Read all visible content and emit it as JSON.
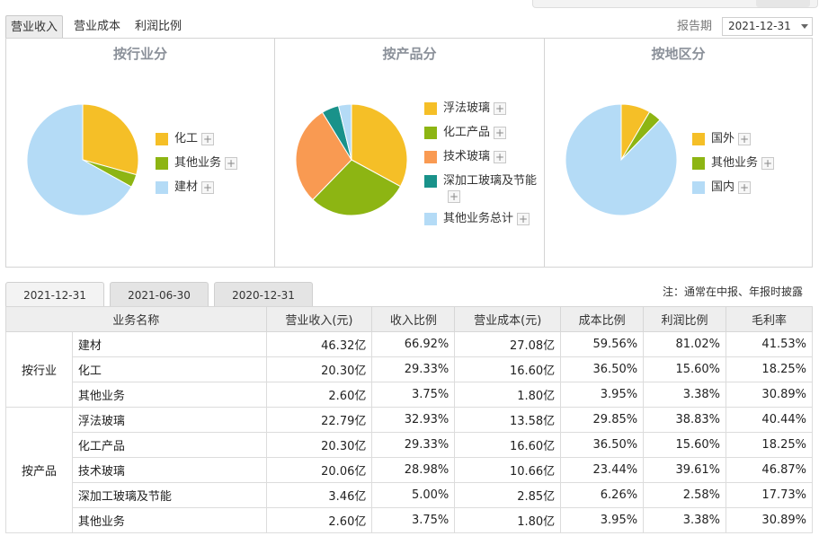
{
  "top_tabs": [
    {
      "label": "营业收入",
      "active": true
    },
    {
      "label": "营业成本",
      "active": false
    },
    {
      "label": "利润比例",
      "active": false
    }
  ],
  "report": {
    "label": "报告期",
    "selected": "2021-12-31"
  },
  "colors": {
    "yellow": "#f5bf27",
    "green": "#8db513",
    "light_blue": "#b4dbf6",
    "orange": "#f99a52",
    "teal": "#19928a",
    "title_gray": "#8a9099"
  },
  "panels": [
    {
      "title": "按行业分",
      "slices": [
        {
          "name": "化工",
          "percent": 29.33,
          "color": "#f5bf27"
        },
        {
          "name": "其他业务",
          "percent": 3.75,
          "color": "#8db513"
        },
        {
          "name": "建材",
          "percent": 66.92,
          "color": "#b4dbf6"
        }
      ]
    },
    {
      "title": "按产品分",
      "slices": [
        {
          "name": "浮法玻璃",
          "percent": 32.93,
          "color": "#f5bf27"
        },
        {
          "name": "化工产品",
          "percent": 29.33,
          "color": "#8db513"
        },
        {
          "name": "技术玻璃",
          "percent": 28.98,
          "color": "#f99a52"
        },
        {
          "name": "深加工玻璃及节能",
          "percent": 5.0,
          "color": "#19928a"
        },
        {
          "name": "其他业务总计",
          "percent": 3.75,
          "color": "#b4dbf6"
        }
      ]
    },
    {
      "title": "按地区分",
      "slices": [
        {
          "name": "国外",
          "percent": 8.5,
          "color": "#f5bf27"
        },
        {
          "name": "其他业务",
          "percent": 3.75,
          "color": "#8db513"
        },
        {
          "name": "国内",
          "percent": 87.75,
          "color": "#b4dbf6"
        }
      ]
    }
  ],
  "plus_glyph": "+",
  "period_tabs": [
    {
      "label": "2021-12-31",
      "active": true
    },
    {
      "label": "2021-06-30",
      "active": false
    },
    {
      "label": "2020-12-31",
      "active": false
    }
  ],
  "note": "注：通常在中报、年报时披露",
  "table": {
    "headers": [
      "业务名称",
      "营业收入(元)",
      "收入比例",
      "营业成本(元)",
      "成本比例",
      "利润比例",
      "毛利率"
    ],
    "groups": [
      {
        "name": "按行业",
        "rows": [
          [
            "建材",
            "46.32亿",
            "66.92%",
            "27.08亿",
            "59.56%",
            "81.02%",
            "41.53%"
          ],
          [
            "化工",
            "20.30亿",
            "29.33%",
            "16.60亿",
            "36.50%",
            "15.60%",
            "18.25%"
          ],
          [
            "其他业务",
            "2.60亿",
            "3.75%",
            "1.80亿",
            "3.95%",
            "3.38%",
            "30.89%"
          ]
        ]
      },
      {
        "name": "按产品",
        "rows": [
          [
            "浮法玻璃",
            "22.79亿",
            "32.93%",
            "13.58亿",
            "29.85%",
            "38.83%",
            "40.44%"
          ],
          [
            "化工产品",
            "20.30亿",
            "29.33%",
            "16.60亿",
            "36.50%",
            "15.60%",
            "18.25%"
          ],
          [
            "技术玻璃",
            "20.06亿",
            "28.98%",
            "10.66亿",
            "23.44%",
            "39.61%",
            "46.87%"
          ],
          [
            "深加工玻璃及节能",
            "3.46亿",
            "5.00%",
            "2.85亿",
            "6.26%",
            "2.58%",
            "17.73%"
          ],
          [
            "其他业务",
            "2.60亿",
            "3.75%",
            "1.80亿",
            "3.95%",
            "3.38%",
            "30.89%"
          ]
        ]
      }
    ]
  }
}
